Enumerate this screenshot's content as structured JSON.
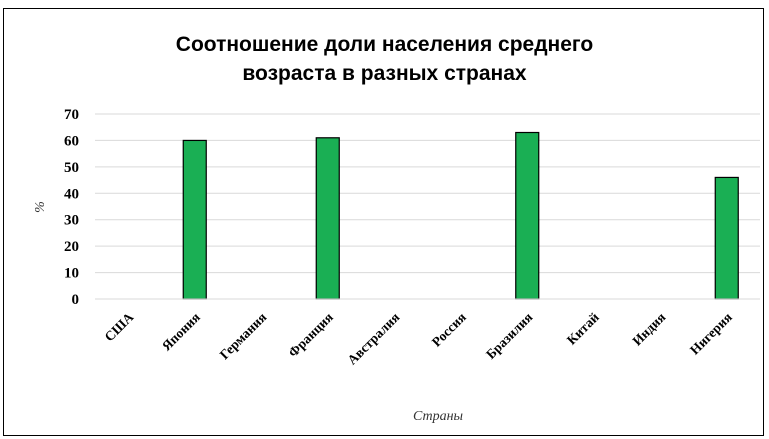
{
  "chart_data": {
    "type": "bar",
    "title": "Соотношение доли населения среднего\nвозраста в разных странах",
    "xlabel": "Страны",
    "ylabel": "%",
    "ylim": [
      0,
      70
    ],
    "yticks": [
      "0",
      "10",
      "20",
      "30",
      "40",
      "50",
      "60",
      "70"
    ],
    "grid": true,
    "legend": "none",
    "bar_color": "#1aaf54",
    "categories": [
      "США",
      "Япония",
      "Германия",
      "Франция",
      "Австралия",
      "Россия",
      "Бразилия",
      "Китай",
      "Индия",
      "Нигерия"
    ],
    "values": [
      null,
      60,
      null,
      61,
      null,
      null,
      63,
      null,
      null,
      46
    ]
  }
}
